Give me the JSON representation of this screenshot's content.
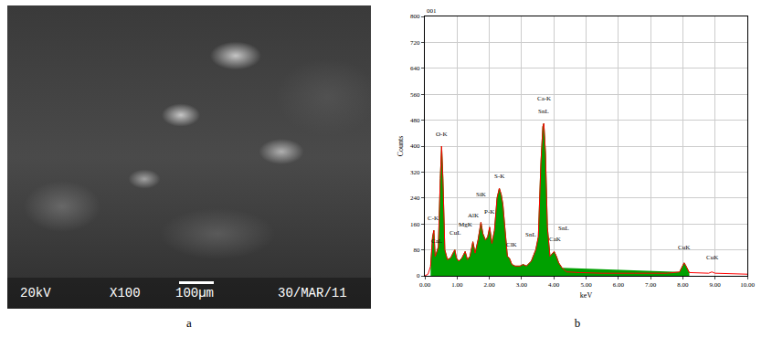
{
  "image_a": {
    "texts": [
      "20kV",
      "X100",
      "100µm",
      "30/MAR/11"
    ]
  },
  "panel_labels": [
    "a",
    "b"
  ],
  "chart_data": {
    "type": "area",
    "label": "001",
    "x_title": "keV",
    "y_title": "Counts",
    "x": [
      0.0,
      0.1,
      0.18,
      0.24,
      0.28,
      0.32,
      0.36,
      0.42,
      0.48,
      0.52,
      0.56,
      0.62,
      0.7,
      0.8,
      0.9,
      0.93,
      0.98,
      1.05,
      1.15,
      1.25,
      1.32,
      1.4,
      1.49,
      1.56,
      1.65,
      1.74,
      1.8,
      1.88,
      1.95,
      2.01,
      2.08,
      2.16,
      2.24,
      2.31,
      2.37,
      2.42,
      2.48,
      2.56,
      2.62,
      2.7,
      2.8,
      2.95,
      3.05,
      3.15,
      3.3,
      3.44,
      3.52,
      3.6,
      3.66,
      3.69,
      3.74,
      3.8,
      3.88,
      3.95,
      4.01,
      4.08,
      4.15,
      4.25,
      4.4,
      4.8,
      5.5,
      6.5,
      7.5,
      7.9,
      8.0,
      8.04,
      8.1,
      8.2,
      8.8,
      8.9,
      9.0,
      10.0
    ],
    "series": [
      {
        "type": "area",
        "color": "#00a000",
        "values": [
          null,
          null,
          30,
          120,
          140,
          60,
          70,
          90,
          300,
          400,
          300,
          80,
          50,
          55,
          75,
          80,
          55,
          45,
          55,
          75,
          50,
          60,
          105,
          70,
          110,
          165,
          130,
          110,
          120,
          150,
          100,
          140,
          240,
          270,
          250,
          220,
          150,
          60,
          55,
          35,
          30,
          30,
          35,
          30,
          45,
          80,
          120,
          350,
          460,
          470,
          380,
          150,
          60,
          70,
          75,
          60,
          40,
          25,
          null,
          null,
          null,
          null,
          null,
          12,
          35,
          40,
          30,
          10,
          null,
          null,
          null,
          null
        ]
      },
      {
        "type": "line",
        "color": "#ff0000",
        "values": [
          0,
          5,
          30,
          120,
          140,
          60,
          70,
          90,
          300,
          400,
          300,
          80,
          50,
          55,
          75,
          80,
          55,
          45,
          55,
          75,
          50,
          60,
          105,
          70,
          110,
          165,
          130,
          110,
          120,
          150,
          100,
          140,
          240,
          270,
          250,
          220,
          150,
          60,
          55,
          35,
          30,
          30,
          35,
          30,
          45,
          80,
          120,
          350,
          460,
          470,
          380,
          150,
          60,
          70,
          75,
          60,
          40,
          25,
          12,
          10,
          8,
          8,
          8,
          12,
          35,
          40,
          30,
          10,
          8,
          12,
          8,
          5
        ]
      }
    ],
    "xlim": [
      0,
      10
    ],
    "ylim": [
      0,
      800
    ],
    "xticks": [
      {
        "value": 0,
        "label": "0.00"
      },
      {
        "value": 1,
        "label": "1.00"
      },
      {
        "value": 2,
        "label": "2.00"
      },
      {
        "value": 3,
        "label": "3.00"
      },
      {
        "value": 4,
        "label": "4.00"
      },
      {
        "value": 5,
        "label": "5.00"
      },
      {
        "value": 6,
        "label": "6.00"
      },
      {
        "value": 7,
        "label": "7.00"
      },
      {
        "value": 8,
        "label": "8.00"
      },
      {
        "value": 9,
        "label": "9.00"
      },
      {
        "value": 10,
        "label": "10.00"
      }
    ],
    "yticks": [
      0,
      80,
      160,
      240,
      320,
      400,
      480,
      560,
      640,
      720,
      800
    ],
    "grid": true,
    "annotations": [
      {
        "text": "C-K",
        "x": 0.26,
        "y": 160
      },
      {
        "text": "O-K",
        "x": 0.52,
        "y": 420
      },
      {
        "text": "CaL",
        "x": 0.36,
        "y": 90
      },
      {
        "text": "CuL",
        "x": 0.93,
        "y": 115
      },
      {
        "text": "MgK",
        "x": 1.25,
        "y": 140
      },
      {
        "text": "AlK",
        "x": 1.49,
        "y": 170
      },
      {
        "text": "SiK",
        "x": 1.74,
        "y": 235
      },
      {
        "text": "P-K",
        "x": 2.01,
        "y": 180
      },
      {
        "text": "S-K",
        "x": 2.31,
        "y": 290
      },
      {
        "text": "ClK",
        "x": 2.7,
        "y": 80
      },
      {
        "text": "SnL",
        "x": 3.29,
        "y": 110
      },
      {
        "text": "SnL",
        "x": 3.69,
        "y": 490
      },
      {
        "text": "Ca-K",
        "x": 3.69,
        "y": 530
      },
      {
        "text": "CaK",
        "x": 4.05,
        "y": 95
      },
      {
        "text": "SnL",
        "x": 4.3,
        "y": 130
      },
      {
        "text": "CuK",
        "x": 8.04,
        "y": 70
      },
      {
        "text": "CuK",
        "x": 8.9,
        "y": 40
      }
    ]
  }
}
